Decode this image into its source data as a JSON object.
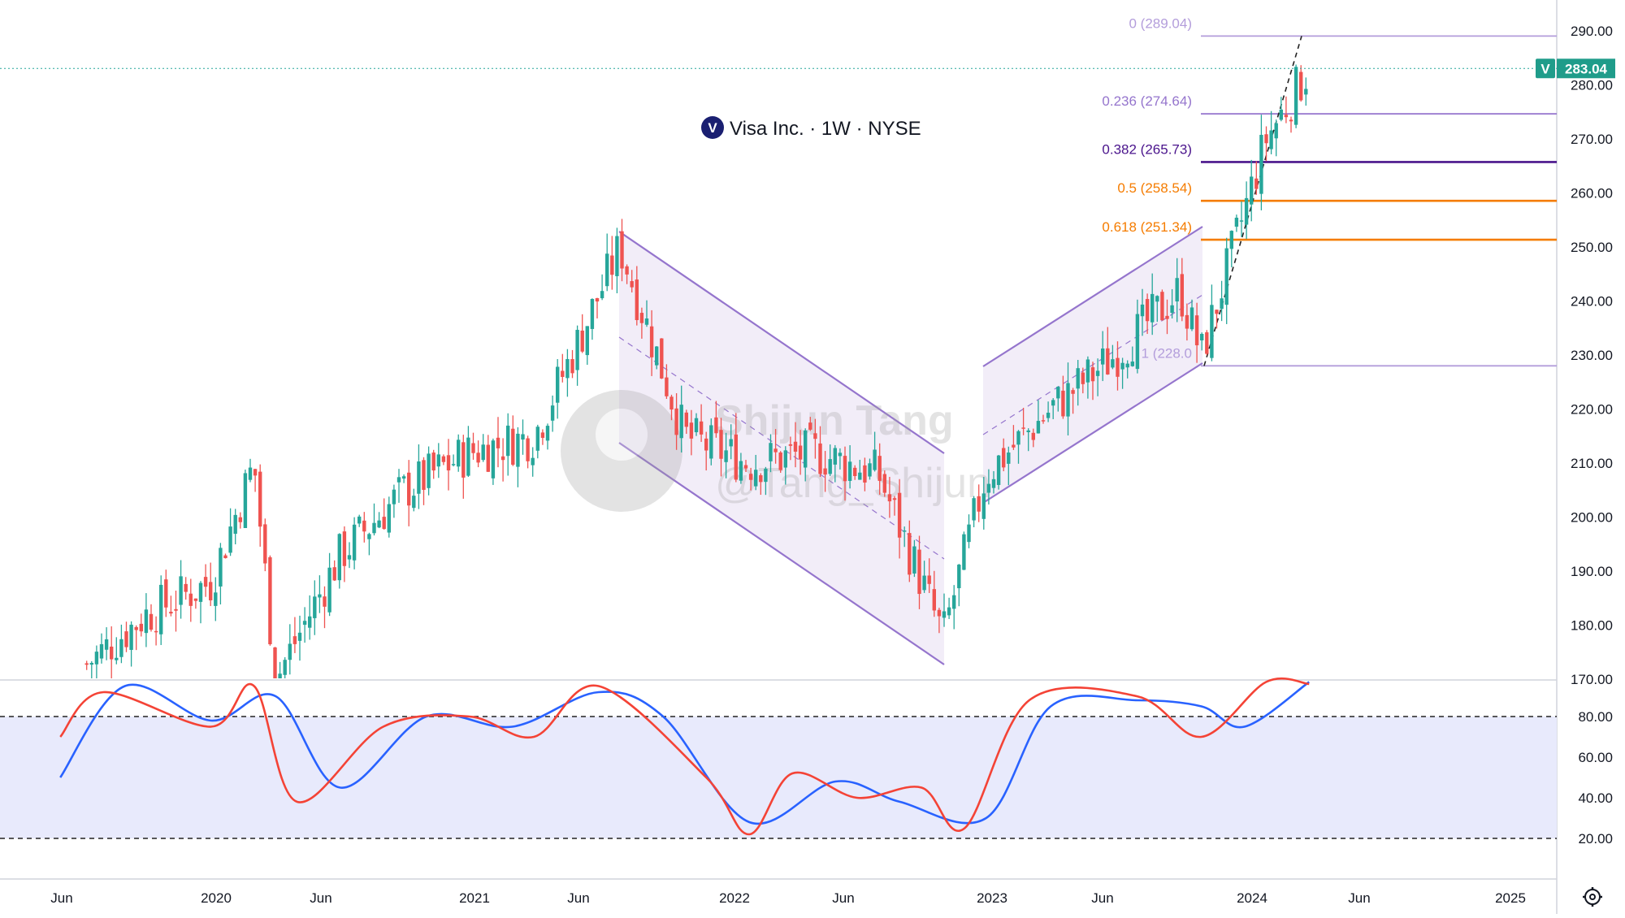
{
  "header": {
    "symbol_logo_letter": "V",
    "title": "Visa Inc. · 1W · NYSE"
  },
  "watermark": {
    "name": "Shijun Tang",
    "handle": "@Tang_Shijun"
  },
  "price_badge": {
    "ticker": "V",
    "value": "283.04",
    "color": "#1f9c8a"
  },
  "colors": {
    "up": "#26a69a",
    "down": "#ef5350",
    "channel": "#9575cd",
    "fib_purple_light": "#b39ddb",
    "fib_purple_dark": "#4a148c",
    "fib_orange": "#f57c00",
    "stoch_k": "#f44336",
    "stoch_d": "#2962ff",
    "stoch_band": "#e8eafc"
  },
  "price_axis": {
    "ticks": [
      "290.00",
      "280.00",
      "270.00",
      "260.00",
      "250.00",
      "240.00",
      "230.00",
      "220.00",
      "210.00",
      "200.00",
      "190.00",
      "180.00",
      "170.00"
    ]
  },
  "stoch_axis": {
    "ticks": [
      "80.00",
      "60.00",
      "40.00",
      "20.00"
    ]
  },
  "time_axis": {
    "ticks": [
      "Jun",
      "2020",
      "Jun",
      "2021",
      "Jun",
      "2022",
      "Jun",
      "2023",
      "Jun",
      "2024",
      "Jun",
      "2025"
    ]
  },
  "settings_icon": "gear-icon",
  "fib_levels": [
    {
      "label": "0 (289.04)",
      "value": 289.04,
      "color": "#b39ddb"
    },
    {
      "label": "0.236 (274.64)",
      "value": 274.64,
      "color": "#9575cd"
    },
    {
      "label": "0.382 (265.73)",
      "value": 265.73,
      "color": "#4a148c"
    },
    {
      "label": "0.5 (258.54)",
      "value": 258.54,
      "color": "#f57c00"
    },
    {
      "label": "0.618 (251.34)",
      "value": 251.34,
      "color": "#f57c00"
    },
    {
      "label": "1 (228.0",
      "value": 228.0,
      "color": "#b39ddb"
    }
  ],
  "chart_data": {
    "type": "candlestick",
    "title": "Visa Inc. · 1W · NYSE",
    "ylim": [
      170,
      292
    ],
    "last_price": 283.04,
    "candles_weekly_close": [
      {
        "date": "2019-06",
        "close": 172
      },
      {
        "date": "2019-09",
        "close": 182
      },
      {
        "date": "2019-12",
        "close": 188
      },
      {
        "date": "2020-02",
        "close": 210
      },
      {
        "date": "2020-03",
        "close": 170
      },
      {
        "date": "2020-06",
        "close": 193
      },
      {
        "date": "2020-09",
        "close": 205
      },
      {
        "date": "2020-12",
        "close": 212
      },
      {
        "date": "2021-03",
        "close": 215
      },
      {
        "date": "2021-05",
        "close": 232
      },
      {
        "date": "2021-07",
        "close": 250
      },
      {
        "date": "2021-10",
        "close": 215
      },
      {
        "date": "2022-01",
        "close": 210
      },
      {
        "date": "2022-04",
        "close": 212
      },
      {
        "date": "2022-07",
        "close": 208
      },
      {
        "date": "2022-10",
        "close": 178
      },
      {
        "date": "2022-12",
        "close": 208
      },
      {
        "date": "2023-03",
        "close": 220
      },
      {
        "date": "2023-06",
        "close": 230
      },
      {
        "date": "2023-09",
        "close": 242
      },
      {
        "date": "2023-10",
        "close": 230
      },
      {
        "date": "2024-01",
        "close": 270
      },
      {
        "date": "2024-03",
        "close": 283.04
      }
    ],
    "stochastic": {
      "upper_band": 80,
      "lower_band": 20,
      "k_series": [
        {
          "date": "2019-05",
          "value": 70
        },
        {
          "date": "2019-07",
          "value": 92
        },
        {
          "date": "2019-12",
          "value": 75
        },
        {
          "date": "2020-02",
          "value": 95
        },
        {
          "date": "2020-04",
          "value": 38
        },
        {
          "date": "2020-08",
          "value": 75
        },
        {
          "date": "2020-12",
          "value": 80
        },
        {
          "date": "2021-03",
          "value": 70
        },
        {
          "date": "2021-06",
          "value": 95
        },
        {
          "date": "2021-11",
          "value": 50
        },
        {
          "date": "2022-01",
          "value": 22
        },
        {
          "date": "2022-03",
          "value": 52
        },
        {
          "date": "2022-06",
          "value": 40
        },
        {
          "date": "2022-09",
          "value": 45
        },
        {
          "date": "2022-11",
          "value": 25
        },
        {
          "date": "2023-02",
          "value": 88
        },
        {
          "date": "2023-07",
          "value": 90
        },
        {
          "date": "2023-10",
          "value": 70
        },
        {
          "date": "2024-01",
          "value": 97
        },
        {
          "date": "2024-03",
          "value": 96
        }
      ],
      "d_series": [
        {
          "date": "2019-05",
          "value": 50
        },
        {
          "date": "2019-08",
          "value": 95
        },
        {
          "date": "2019-12",
          "value": 78
        },
        {
          "date": "2020-03",
          "value": 90
        },
        {
          "date": "2020-06",
          "value": 45
        },
        {
          "date": "2020-10",
          "value": 80
        },
        {
          "date": "2021-02",
          "value": 75
        },
        {
          "date": "2021-06",
          "value": 92
        },
        {
          "date": "2021-09",
          "value": 80
        },
        {
          "date": "2022-01",
          "value": 28
        },
        {
          "date": "2022-05",
          "value": 48
        },
        {
          "date": "2022-08",
          "value": 38
        },
        {
          "date": "2022-12",
          "value": 30
        },
        {
          "date": "2023-03",
          "value": 85
        },
        {
          "date": "2023-07",
          "value": 88
        },
        {
          "date": "2023-10",
          "value": 85
        },
        {
          "date": "2023-12",
          "value": 75
        },
        {
          "date": "2024-03",
          "value": 97
        }
      ]
    }
  }
}
